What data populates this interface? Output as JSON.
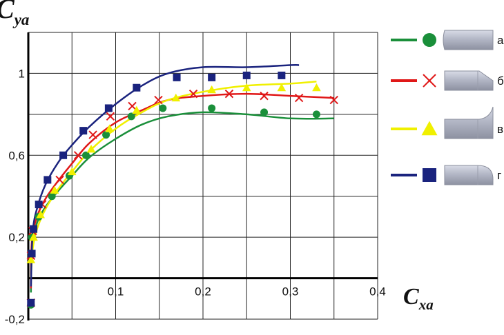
{
  "chart_data": {
    "type": "scatter",
    "title": "",
    "ylabel": {
      "main": "C",
      "sub": "ya"
    },
    "xlabel": {
      "main": "C",
      "sub": "xa"
    },
    "xlim": [
      0,
      0.4
    ],
    "ylim": [
      -0.2,
      1.2
    ],
    "xticks": [
      0,
      0.05,
      0.1,
      0.15,
      0.2,
      0.25,
      0.3,
      0.35,
      0.4
    ],
    "yticks": [
      -0.2,
      0,
      0.2,
      0.4,
      0.6,
      0.8,
      1.0,
      1.2
    ],
    "x_tick_labels": [
      {
        "value": 0.1,
        "label": "0,1"
      },
      {
        "value": 0.2,
        "label": "0,2"
      },
      {
        "value": 0.3,
        "label": "0,3"
      },
      {
        "value": 0.4,
        "label": "0,4"
      }
    ],
    "y_tick_labels": [
      {
        "value": -0.2,
        "label": "-0,2"
      },
      {
        "value": 0.2,
        "label": "0,2"
      },
      {
        "value": 0.6,
        "label": "0,6"
      },
      {
        "value": 1.0,
        "label": "1"
      }
    ],
    "grid": true,
    "legend_position": "right",
    "series": [
      {
        "name": "а",
        "color": "#1a8f3a",
        "marker": "circle",
        "points": [
          [
            0.003,
            -0.13
          ],
          [
            0.004,
            0.2
          ],
          [
            0.012,
            0.3
          ],
          [
            0.027,
            0.4
          ],
          [
            0.047,
            0.5
          ],
          [
            0.066,
            0.6
          ],
          [
            0.089,
            0.7
          ],
          [
            0.118,
            0.79
          ],
          [
            0.154,
            0.83
          ],
          [
            0.21,
            0.83
          ],
          [
            0.27,
            0.81
          ],
          [
            0.33,
            0.8
          ]
        ],
        "curve": [
          [
            0.003,
            -0.07
          ],
          [
            0.004,
            0.15
          ],
          [
            0.01,
            0.27
          ],
          [
            0.02,
            0.35
          ],
          [
            0.035,
            0.43
          ],
          [
            0.05,
            0.5
          ],
          [
            0.07,
            0.59
          ],
          [
            0.1,
            0.68
          ],
          [
            0.13,
            0.75
          ],
          [
            0.16,
            0.79
          ],
          [
            0.2,
            0.81
          ],
          [
            0.25,
            0.8
          ],
          [
            0.3,
            0.78
          ],
          [
            0.35,
            0.78
          ]
        ]
      },
      {
        "name": "б",
        "color": "#e01818",
        "marker": "x",
        "points": [
          [
            0.003,
            -0.12
          ],
          [
            0.003,
            0.11
          ],
          [
            0.005,
            0.23
          ],
          [
            0.016,
            0.36
          ],
          [
            0.036,
            0.48
          ],
          [
            0.057,
            0.6
          ],
          [
            0.074,
            0.7
          ],
          [
            0.094,
            0.79
          ],
          [
            0.119,
            0.84
          ],
          [
            0.149,
            0.87
          ],
          [
            0.189,
            0.9
          ],
          [
            0.23,
            0.9
          ],
          [
            0.27,
            0.89
          ],
          [
            0.31,
            0.88
          ],
          [
            0.35,
            0.87
          ]
        ],
        "curve": [
          [
            0.003,
            -0.05
          ],
          [
            0.004,
            0.18
          ],
          [
            0.01,
            0.3
          ],
          [
            0.02,
            0.39
          ],
          [
            0.035,
            0.48
          ],
          [
            0.05,
            0.56
          ],
          [
            0.07,
            0.66
          ],
          [
            0.1,
            0.76
          ],
          [
            0.13,
            0.82
          ],
          [
            0.16,
            0.87
          ],
          [
            0.2,
            0.89
          ],
          [
            0.25,
            0.9
          ],
          [
            0.3,
            0.89
          ],
          [
            0.35,
            0.88
          ]
        ]
      },
      {
        "name": "в",
        "color": "#f0f000",
        "marker": "triangle",
        "points": [
          [
            0.003,
            0.09
          ],
          [
            0.006,
            0.2
          ],
          [
            0.014,
            0.31
          ],
          [
            0.03,
            0.43
          ],
          [
            0.05,
            0.52
          ],
          [
            0.072,
            0.63
          ],
          [
            0.093,
            0.73
          ],
          [
            0.124,
            0.82
          ],
          [
            0.169,
            0.88
          ],
          [
            0.21,
            0.92
          ],
          [
            0.25,
            0.93
          ],
          [
            0.29,
            0.93
          ],
          [
            0.33,
            0.93
          ]
        ],
        "curve": [
          [
            0.003,
            0.0
          ],
          [
            0.005,
            0.14
          ],
          [
            0.01,
            0.24
          ],
          [
            0.02,
            0.34
          ],
          [
            0.035,
            0.44
          ],
          [
            0.05,
            0.52
          ],
          [
            0.07,
            0.62
          ],
          [
            0.1,
            0.73
          ],
          [
            0.13,
            0.81
          ],
          [
            0.16,
            0.87
          ],
          [
            0.2,
            0.91
          ],
          [
            0.25,
            0.94
          ],
          [
            0.3,
            0.95
          ],
          [
            0.33,
            0.96
          ]
        ]
      },
      {
        "name": "г",
        "color": "#1a237e",
        "marker": "square",
        "points": [
          [
            0.003,
            -0.12
          ],
          [
            0.004,
            0.12
          ],
          [
            0.006,
            0.24
          ],
          [
            0.012,
            0.36
          ],
          [
            0.022,
            0.48
          ],
          [
            0.04,
            0.6
          ],
          [
            0.063,
            0.72
          ],
          [
            0.092,
            0.83
          ],
          [
            0.124,
            0.93
          ],
          [
            0.17,
            0.98
          ],
          [
            0.21,
            0.98
          ],
          [
            0.25,
            0.99
          ],
          [
            0.29,
            0.99
          ]
        ],
        "curve": [
          [
            0.003,
            -0.04
          ],
          [
            0.005,
            0.22
          ],
          [
            0.01,
            0.34
          ],
          [
            0.02,
            0.46
          ],
          [
            0.035,
            0.57
          ],
          [
            0.05,
            0.65
          ],
          [
            0.07,
            0.74
          ],
          [
            0.1,
            0.85
          ],
          [
            0.13,
            0.94
          ],
          [
            0.16,
            1.0
          ],
          [
            0.2,
            1.03
          ],
          [
            0.25,
            1.03
          ],
          [
            0.3,
            1.04
          ],
          [
            0.31,
            1.04
          ]
        ]
      }
    ]
  },
  "legend": {
    "items": [
      {
        "label": "а",
        "color": "#1a8f3a",
        "marker": "circle",
        "shape": "blunt"
      },
      {
        "label": "б",
        "color": "#e01818",
        "marker": "x",
        "shape": "chamfer"
      },
      {
        "label": "в",
        "color": "#f0f000",
        "marker": "triangle",
        "shape": "concave"
      },
      {
        "label": "г",
        "color": "#1a237e",
        "marker": "square",
        "shape": "rounded"
      }
    ]
  }
}
